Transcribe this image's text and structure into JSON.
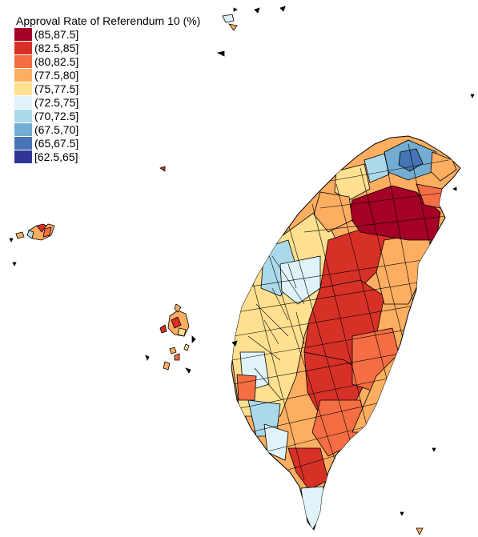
{
  "legend": {
    "title": "Approval Rate of Referendum 10 (%)",
    "items": [
      {
        "label": "(85,87.5]",
        "color": "#a50026"
      },
      {
        "label": "(82.5,85]",
        "color": "#d73027"
      },
      {
        "label": "(80,82.5]",
        "color": "#f46d43"
      },
      {
        "label": "(77.5,80]",
        "color": "#fdae61"
      },
      {
        "label": "(75,77.5]",
        "color": "#fee090"
      },
      {
        "label": "(72.5,75]",
        "color": "#e0f3f8"
      },
      {
        "label": "(70,72.5]",
        "color": "#abd9e9"
      },
      {
        "label": "(67.5,70]",
        "color": "#74add1"
      },
      {
        "label": "(65,67.5]",
        "color": "#4575b4"
      },
      {
        "label": "[62.5,65]",
        "color": "#313695"
      }
    ]
  }
}
